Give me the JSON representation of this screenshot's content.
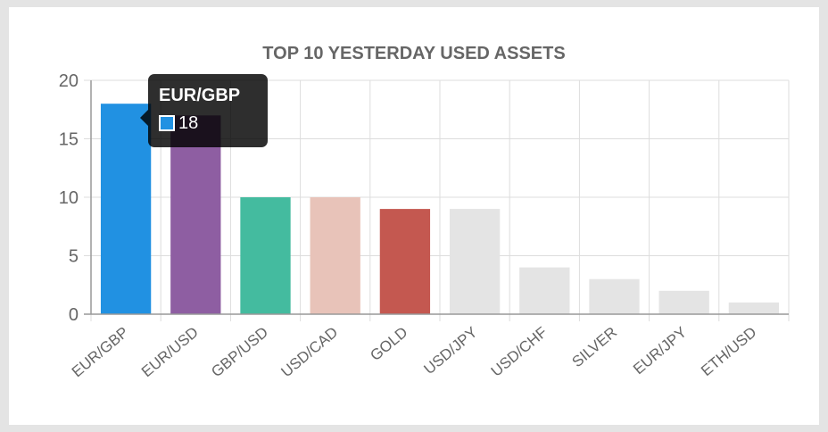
{
  "chart_data": {
    "type": "bar",
    "title": "TOP 10 YESTERDAY USED ASSETS",
    "categories": [
      "EUR/GBP",
      "EUR/USD",
      "GBP/USD",
      "USD/CAD",
      "GOLD",
      "USD/JPY",
      "USD/CHF",
      "SILVER",
      "EUR/JPY",
      "ETH/USD"
    ],
    "values": [
      18,
      17,
      10,
      10,
      9,
      9,
      4,
      3,
      2,
      1
    ],
    "colors": [
      "#2191e2",
      "#8e5ea2",
      "#44bb9f",
      "#e8c3b9",
      "#c45850",
      "#e4e4e4",
      "#e4e4e4",
      "#e4e4e4",
      "#e4e4e4",
      "#e4e4e4"
    ],
    "ylim": [
      0,
      20
    ],
    "yticks": [
      "0",
      "5",
      "10",
      "15",
      "20"
    ],
    "grid": true,
    "legend": "none"
  },
  "tooltip": {
    "title": "EUR/GBP",
    "value": "18",
    "color": "#2191e2"
  }
}
